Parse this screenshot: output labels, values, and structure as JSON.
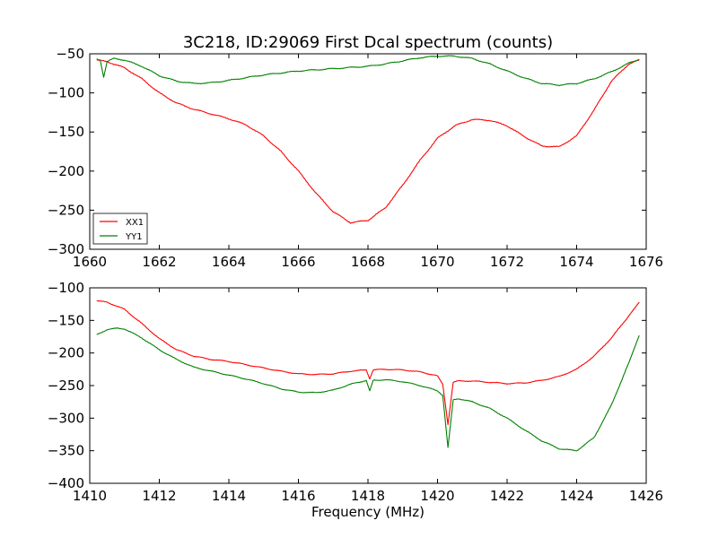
{
  "chart_data": [
    {
      "type": "line",
      "title": "3C218, ID:29069 First Dcal spectrum (counts)",
      "xlabel": "",
      "ylabel": "",
      "xlim": [
        1660,
        1676
      ],
      "ylim": [
        -300,
        -50
      ],
      "xticks": [
        "1660",
        "1662",
        "1664",
        "1666",
        "1668",
        "1670",
        "1672",
        "1674",
        "1676"
      ],
      "yticks": [
        "-50",
        "-100",
        "-150",
        "-200",
        "-250",
        "-300"
      ],
      "legend": {
        "position": "lower-left",
        "entries": [
          "XX1",
          "YY1"
        ]
      },
      "series": [
        {
          "name": "XX1",
          "color": "#ff0000",
          "x": [
            1660.2,
            1660.5,
            1661.0,
            1661.5,
            1662.0,
            1662.5,
            1663.0,
            1663.5,
            1664.0,
            1664.5,
            1665.0,
            1665.5,
            1666.0,
            1666.5,
            1667.0,
            1667.5,
            1668.0,
            1668.5,
            1669.0,
            1669.5,
            1670.0,
            1670.5,
            1671.0,
            1671.5,
            1672.0,
            1672.5,
            1673.0,
            1673.5,
            1674.0,
            1674.5,
            1675.0,
            1675.5,
            1675.8
          ],
          "y": [
            -58,
            -60,
            -68,
            -82,
            -100,
            -113,
            -121,
            -127,
            -133,
            -141,
            -155,
            -175,
            -200,
            -228,
            -252,
            -266,
            -263,
            -247,
            -218,
            -186,
            -158,
            -142,
            -134,
            -135,
            -142,
            -156,
            -168,
            -169,
            -155,
            -122,
            -85,
            -63,
            -58
          ]
        },
        {
          "name": "YY1",
          "color": "#008000",
          "x": [
            1660.2,
            1660.3,
            1660.4,
            1660.5,
            1660.7,
            1661.0,
            1661.5,
            1662.0,
            1662.5,
            1663.0,
            1663.5,
            1664.0,
            1665.0,
            1666.0,
            1667.0,
            1668.0,
            1668.5,
            1669.0,
            1669.5,
            1670.0,
            1670.5,
            1671.0,
            1671.5,
            1672.0,
            1672.5,
            1673.0,
            1673.5,
            1674.0,
            1674.5,
            1675.0,
            1675.5,
            1675.8
          ],
          "y": [
            -57,
            -58,
            -80,
            -60,
            -56,
            -58,
            -66,
            -78,
            -85,
            -88,
            -87,
            -84,
            -77,
            -72,
            -69,
            -66,
            -63,
            -59,
            -55,
            -53,
            -53,
            -56,
            -63,
            -72,
            -81,
            -88,
            -90,
            -88,
            -82,
            -73,
            -62,
            -57
          ]
        }
      ]
    },
    {
      "type": "line",
      "title": "",
      "xlabel": "Frequency (MHz)",
      "ylabel": "",
      "xlim": [
        1410,
        1426
      ],
      "ylim": [
        -400,
        -100
      ],
      "xticks": [
        "1410",
        "1412",
        "1414",
        "1416",
        "1418",
        "1420",
        "1422",
        "1424",
        "1426"
      ],
      "yticks": [
        "-100",
        "-150",
        "-200",
        "-250",
        "-300",
        "-350",
        "-400"
      ],
      "series": [
        {
          "name": "XX1",
          "color": "#ff0000",
          "x": [
            1410.2,
            1410.5,
            1411.0,
            1411.5,
            1412.0,
            1412.5,
            1413.0,
            1413.5,
            1414.0,
            1414.5,
            1415.0,
            1415.5,
            1416.0,
            1416.5,
            1417.0,
            1417.5,
            1417.95,
            1418.05,
            1418.15,
            1418.5,
            1419.0,
            1419.5,
            1420.0,
            1420.15,
            1420.3,
            1420.45,
            1420.6,
            1421.0,
            1421.5,
            1422.0,
            1422.5,
            1423.0,
            1423.5,
            1424.0,
            1424.5,
            1425.0,
            1425.5,
            1425.8
          ],
          "y": [
            -120,
            -122,
            -133,
            -155,
            -178,
            -195,
            -205,
            -210,
            -213,
            -218,
            -223,
            -228,
            -232,
            -233,
            -232,
            -228,
            -226,
            -240,
            -226,
            -225,
            -226,
            -229,
            -235,
            -248,
            -310,
            -245,
            -243,
            -243,
            -245,
            -247,
            -246,
            -242,
            -236,
            -225,
            -205,
            -177,
            -143,
            -122
          ]
        },
        {
          "name": "YY1",
          "color": "#008000",
          "x": [
            1410.2,
            1410.5,
            1410.8,
            1411.0,
            1411.5,
            1412.0,
            1412.5,
            1413.0,
            1413.5,
            1414.0,
            1414.5,
            1415.0,
            1415.5,
            1416.0,
            1416.5,
            1417.0,
            1417.5,
            1417.95,
            1418.05,
            1418.15,
            1418.5,
            1419.0,
            1419.5,
            1420.0,
            1420.15,
            1420.3,
            1420.45,
            1420.6,
            1421.0,
            1421.5,
            1422.0,
            1422.5,
            1423.0,
            1423.5,
            1424.0,
            1424.5,
            1425.0,
            1425.5,
            1425.8
          ],
          "y": [
            -172,
            -164,
            -162,
            -163,
            -177,
            -195,
            -210,
            -222,
            -228,
            -234,
            -240,
            -247,
            -255,
            -260,
            -261,
            -257,
            -248,
            -242,
            -258,
            -242,
            -241,
            -244,
            -250,
            -258,
            -265,
            -345,
            -272,
            -270,
            -275,
            -285,
            -300,
            -318,
            -335,
            -347,
            -350,
            -330,
            -280,
            -215,
            -173
          ]
        }
      ]
    }
  ]
}
